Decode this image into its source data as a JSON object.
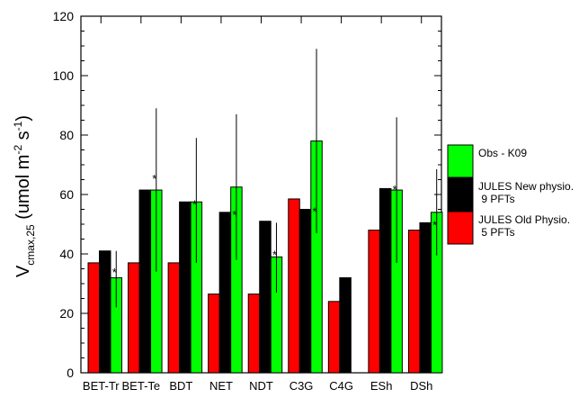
{
  "chart_data": {
    "type": "bar",
    "ylabel_main": "V",
    "ylabel_sub": "cmax,25",
    "ylabel_unit_open": " (umol m",
    "ylabel_sup1": "-2",
    "ylabel_mid": " s",
    "ylabel_sup2": "-1",
    "ylabel_close": ")",
    "ylim": [
      0,
      120
    ],
    "yticks": [
      0,
      20,
      40,
      60,
      80,
      100,
      120
    ],
    "categories": [
      "BET-Tr",
      "BET-Te",
      "BDT",
      "NET",
      "NDT",
      "C3G",
      "C4G",
      "ESh",
      "DSh"
    ],
    "series": [
      {
        "name_lines": [
          "JULES Old Physio.",
          " 5 PFTs"
        ],
        "color": "#ff0000",
        "values": [
          37,
          37,
          37,
          26.5,
          26.5,
          58.5,
          24,
          48,
          48
        ]
      },
      {
        "name_lines": [
          "JULES New physio.",
          " 9 PFTs"
        ],
        "color": "#000000",
        "values": [
          41,
          61.5,
          57.5,
          54,
          51,
          55,
          32,
          62,
          50.5
        ]
      },
      {
        "name_lines": [
          "Obs - K09"
        ],
        "color": "#00ff00",
        "values": [
          32,
          61.5,
          57.5,
          62.5,
          39,
          78,
          null,
          61.5,
          54
        ],
        "error_low": [
          22,
          34,
          37,
          38,
          27,
          47,
          null,
          37,
          39.5
        ],
        "error_high": [
          41,
          89,
          79,
          87,
          50.5,
          109,
          null,
          86,
          68.5
        ],
        "markers": [
          34.5,
          66,
          57.5,
          54,
          40.5,
          55,
          null,
          62.5,
          50.5
        ]
      }
    ],
    "legend_position": "right",
    "grid": false
  }
}
